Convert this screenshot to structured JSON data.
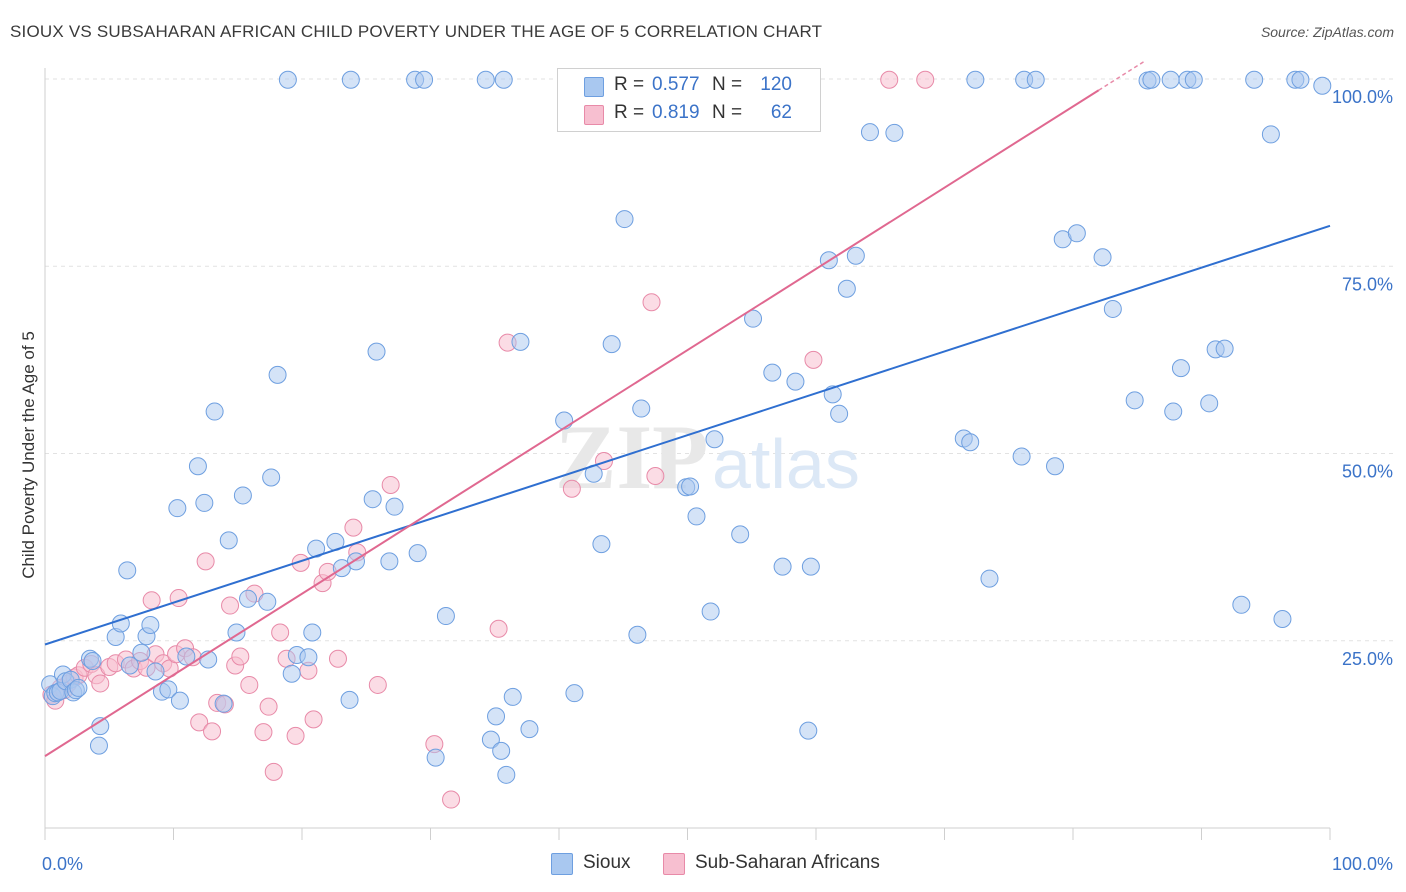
{
  "title": "SIOUX VS SUBSAHARAN AFRICAN CHILD POVERTY UNDER THE AGE OF 5 CORRELATION CHART",
  "source": "Source: ZipAtlas.com",
  "watermark": {
    "zip": "ZIP",
    "atlas": "atlas"
  },
  "legend": {
    "rows": [
      {
        "label": "R =",
        "r_value": "0.577",
        "n_label": "N =",
        "n_value": "120",
        "color": "#a9c8f0",
        "border": "#6e9fe0"
      },
      {
        "label": "R =",
        "r_value": "0.819",
        "n_label": "N =",
        "n_value": "62",
        "color": "#f7bfd0",
        "border": "#e88aa8"
      }
    ]
  },
  "bottom_legend": [
    {
      "label": "Sioux",
      "color": "#a9c8f0",
      "border": "#6e9fe0"
    },
    {
      "label": "Sub-Saharan Africans",
      "color": "#f7bfd0",
      "border": "#e88aa8"
    }
  ],
  "chart_data": {
    "type": "scatter",
    "title": "SIOUX VS SUBSAHARAN AFRICAN CHILD POVERTY UNDER THE AGE OF 5 CORRELATION CHART",
    "xlabel": "",
    "ylabel": "Child Poverty Under the Age of 5",
    "xlim": [
      0,
      100
    ],
    "ylim": [
      0,
      100
    ],
    "x_tick_labels": [
      "0.0%",
      "100.0%"
    ],
    "y_tick_labels": [
      "25.0%",
      "50.0%",
      "75.0%",
      "100.0%"
    ],
    "y_ticks": [
      25,
      50,
      75,
      100
    ],
    "grid": true,
    "colors": {
      "sioux_fill": "#a9c8f0",
      "sioux_stroke": "#6e9fe0",
      "sioux_line": "#2f6fd0",
      "ssa_fill": "#f7bfd0",
      "ssa_stroke": "#e88aa8",
      "ssa_line": "#e06890",
      "tick_label": "#3b73c8"
    },
    "series": [
      {
        "name": "Sioux",
        "trend": {
          "x0": 0,
          "y0": 24.5,
          "x1": 100,
          "y1": 80.4
        },
        "points": [
          [
            0.4,
            19.2
          ],
          [
            0.6,
            17.6
          ],
          [
            0.8,
            18.0
          ],
          [
            1.0,
            18.1
          ],
          [
            1.2,
            18.3
          ],
          [
            1.4,
            20.5
          ],
          [
            1.6,
            19.6
          ],
          [
            2.0,
            19.8
          ],
          [
            2.2,
            18.1
          ],
          [
            2.4,
            18.4
          ],
          [
            2.6,
            18.7
          ],
          [
            3.5,
            22.6
          ],
          [
            3.7,
            22.3
          ],
          [
            4.3,
            13.6
          ],
          [
            4.2,
            11.0
          ],
          [
            5.5,
            25.5
          ],
          [
            5.9,
            27.3
          ],
          [
            6.4,
            34.4
          ],
          [
            6.6,
            21.7
          ],
          [
            7.5,
            23.4
          ],
          [
            7.9,
            25.6
          ],
          [
            8.2,
            27.1
          ],
          [
            8.6,
            20.9
          ],
          [
            9.1,
            18.2
          ],
          [
            9.6,
            18.5
          ],
          [
            10.3,
            42.7
          ],
          [
            10.5,
            17.0
          ],
          [
            11.0,
            22.9
          ],
          [
            11.9,
            48.3
          ],
          [
            12.4,
            43.4
          ],
          [
            12.7,
            22.5
          ],
          [
            13.2,
            55.6
          ],
          [
            13.9,
            16.6
          ],
          [
            14.3,
            38.4
          ],
          [
            14.9,
            26.1
          ],
          [
            15.4,
            44.4
          ],
          [
            15.8,
            30.6
          ],
          [
            17.3,
            30.2
          ],
          [
            17.6,
            46.8
          ],
          [
            18.1,
            60.5
          ],
          [
            19.2,
            20.6
          ],
          [
            19.6,
            23.1
          ],
          [
            20.5,
            22.8
          ],
          [
            20.8,
            26.1
          ],
          [
            21.1,
            37.3
          ],
          [
            22.6,
            38.2
          ],
          [
            23.1,
            34.7
          ],
          [
            23.7,
            17.1
          ],
          [
            24.2,
            35.6
          ],
          [
            25.5,
            43.9
          ],
          [
            25.8,
            63.6
          ],
          [
            26.8,
            35.6
          ],
          [
            27.2,
            42.9
          ],
          [
            29.0,
            36.7
          ],
          [
            30.4,
            9.4
          ],
          [
            31.2,
            28.3
          ],
          [
            34.7,
            11.8
          ],
          [
            35.1,
            14.9
          ],
          [
            35.5,
            10.3
          ],
          [
            35.9,
            7.1
          ],
          [
            36.4,
            17.5
          ],
          [
            37.0,
            64.9
          ],
          [
            37.7,
            13.2
          ],
          [
            40.4,
            54.4
          ],
          [
            41.2,
            18.0
          ],
          [
            42.7,
            47.3
          ],
          [
            43.3,
            37.9
          ],
          [
            44.1,
            64.6
          ],
          [
            45.1,
            81.3
          ],
          [
            46.1,
            25.8
          ],
          [
            46.4,
            56.0
          ],
          [
            49.9,
            45.5
          ],
          [
            50.2,
            45.6
          ],
          [
            50.7,
            41.6
          ],
          [
            51.8,
            28.9
          ],
          [
            52.1,
            51.9
          ],
          [
            54.1,
            39.2
          ],
          [
            55.1,
            68.0
          ],
          [
            56.6,
            60.8
          ],
          [
            57.4,
            34.9
          ],
          [
            58.4,
            59.6
          ],
          [
            59.4,
            13.0
          ],
          [
            59.6,
            34.9
          ],
          [
            61.0,
            75.8
          ],
          [
            61.3,
            57.9
          ],
          [
            61.8,
            55.3
          ],
          [
            62.4,
            72.0
          ],
          [
            63.1,
            76.4
          ],
          [
            64.2,
            92.9
          ],
          [
            66.1,
            92.8
          ],
          [
            71.5,
            52.0
          ],
          [
            72.0,
            51.5
          ],
          [
            73.5,
            33.3
          ],
          [
            76.0,
            49.6
          ],
          [
            78.6,
            48.3
          ],
          [
            79.2,
            78.6
          ],
          [
            80.3,
            79.4
          ],
          [
            82.3,
            76.2
          ],
          [
            83.1,
            69.3
          ],
          [
            84.8,
            57.1
          ],
          [
            85.8,
            99.8
          ],
          [
            86.1,
            99.9
          ],
          [
            87.8,
            55.6
          ],
          [
            88.4,
            61.4
          ],
          [
            88.9,
            99.9
          ],
          [
            89.4,
            99.9
          ],
          [
            90.6,
            56.7
          ],
          [
            91.1,
            63.9
          ],
          [
            91.8,
            64.0
          ],
          [
            93.1,
            29.8
          ],
          [
            94.1,
            99.9
          ],
          [
            95.4,
            92.6
          ],
          [
            96.3,
            27.9
          ],
          [
            97.3,
            99.9
          ],
          [
            97.7,
            99.9
          ],
          [
            99.4,
            99.1
          ],
          [
            18.9,
            99.9
          ],
          [
            23.8,
            99.9
          ],
          [
            28.8,
            99.9
          ],
          [
            29.5,
            99.9
          ],
          [
            34.3,
            99.9
          ],
          [
            35.7,
            99.9
          ],
          [
            72.4,
            99.9
          ],
          [
            76.2,
            99.9
          ],
          [
            77.1,
            99.9
          ],
          [
            87.6,
            99.9
          ]
        ]
      },
      {
        "name": "Sub-Saharan Africans",
        "trend": {
          "x0": 0,
          "y0": 9.6,
          "x1": 82.0,
          "y1": 98.5
        },
        "points": [
          [
            0.5,
            17.8
          ],
          [
            0.8,
            17.0
          ],
          [
            1.2,
            18.7
          ],
          [
            1.5,
            18.4
          ],
          [
            1.8,
            19.3
          ],
          [
            2.3,
            20.1
          ],
          [
            2.6,
            20.4
          ],
          [
            3.1,
            21.4
          ],
          [
            3.6,
            21.9
          ],
          [
            4.0,
            20.4
          ],
          [
            4.3,
            19.3
          ],
          [
            5.0,
            21.5
          ],
          [
            5.5,
            22.0
          ],
          [
            6.3,
            22.5
          ],
          [
            6.9,
            21.3
          ],
          [
            7.4,
            22.3
          ],
          [
            7.9,
            21.4
          ],
          [
            8.3,
            30.4
          ],
          [
            8.6,
            23.2
          ],
          [
            9.2,
            22.0
          ],
          [
            9.7,
            21.3
          ],
          [
            10.2,
            23.2
          ],
          [
            10.4,
            30.7
          ],
          [
            10.9,
            24.0
          ],
          [
            11.5,
            22.8
          ],
          [
            12.0,
            14.1
          ],
          [
            12.5,
            35.6
          ],
          [
            13.0,
            12.9
          ],
          [
            13.4,
            16.7
          ],
          [
            14.0,
            16.5
          ],
          [
            14.4,
            29.7
          ],
          [
            14.8,
            21.7
          ],
          [
            15.2,
            22.9
          ],
          [
            15.9,
            19.1
          ],
          [
            16.3,
            31.3
          ],
          [
            17.0,
            12.8
          ],
          [
            17.4,
            16.2
          ],
          [
            17.8,
            7.5
          ],
          [
            18.3,
            26.1
          ],
          [
            18.8,
            22.6
          ],
          [
            19.5,
            12.3
          ],
          [
            19.9,
            35.4
          ],
          [
            20.5,
            21.0
          ],
          [
            20.9,
            14.5
          ],
          [
            21.6,
            32.7
          ],
          [
            22.0,
            34.2
          ],
          [
            22.8,
            22.6
          ],
          [
            24.0,
            40.1
          ],
          [
            24.3,
            36.8
          ],
          [
            25.9,
            19.1
          ],
          [
            26.9,
            45.8
          ],
          [
            30.3,
            11.2
          ],
          [
            31.6,
            3.8
          ],
          [
            35.3,
            26.6
          ],
          [
            36.0,
            64.8
          ],
          [
            41.0,
            45.3
          ],
          [
            43.5,
            49.0
          ],
          [
            47.5,
            47.0
          ],
          [
            47.2,
            70.2
          ],
          [
            59.8,
            62.5
          ],
          [
            65.7,
            99.9
          ],
          [
            68.5,
            99.9
          ]
        ]
      }
    ]
  }
}
